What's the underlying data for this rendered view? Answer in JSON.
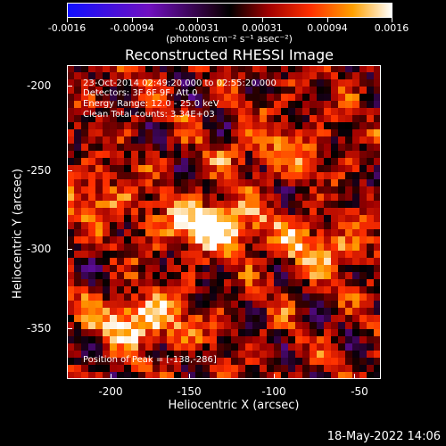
{
  "colorbar": {
    "ticks": [
      "-0.0016",
      "-0.00094",
      "-0.00031",
      "0.00031",
      "0.00094",
      "0.0016"
    ],
    "units_label": "(photons cm⁻² s⁻¹ asec⁻²)"
  },
  "title": "Reconstructed RHESSI Image",
  "annotation": {
    "time": "23-Oct-2014 02:49:20.000 to 02:55:20.000",
    "detectors": "Detectors: 3F 6F 9F, Att 0",
    "energy": "Energy Range: 12.0 - 25.0 keV",
    "clean": "Clean     Total counts: 3.34E+03",
    "peak": "Position of Peak = [-138,-286]"
  },
  "axes": {
    "xlabel": "Heliocentric X (arcsec)",
    "ylabel": "Heliocentric Y (arcsec)",
    "xticks": [
      "-200",
      "-150",
      "-100",
      "-50"
    ],
    "yticks": [
      "-200",
      "-250",
      "-300",
      "-350"
    ]
  },
  "datestamp": "18-May-2022 14:06",
  "colors": {
    "background": "#000000",
    "frame": "#ffffff"
  },
  "chart_data": {
    "type": "heatmap",
    "title": "Reconstructed RHESSI Image",
    "xlabel": "Heliocentric X (arcsec)",
    "ylabel": "Heliocentric Y (arcsec)",
    "xlim": [
      -228,
      -33
    ],
    "ylim": [
      -382,
      -187
    ],
    "colorbar_range": [
      -0.0016,
      0.0016
    ],
    "colormap": "blue-purple-black-red-yellow-white",
    "peak_position": [
      -138,
      -286
    ],
    "features": [
      {
        "x": -138,
        "y": -286,
        "intensity": 1.0
      },
      {
        "x": -183,
        "y": -346,
        "intensity": 0.85
      },
      {
        "x": -70,
        "y": -300,
        "intensity": 0.6
      },
      {
        "x": -210,
        "y": -270,
        "intensity": 0.45
      },
      {
        "x": -100,
        "y": -240,
        "intensity": 0.4
      }
    ]
  }
}
